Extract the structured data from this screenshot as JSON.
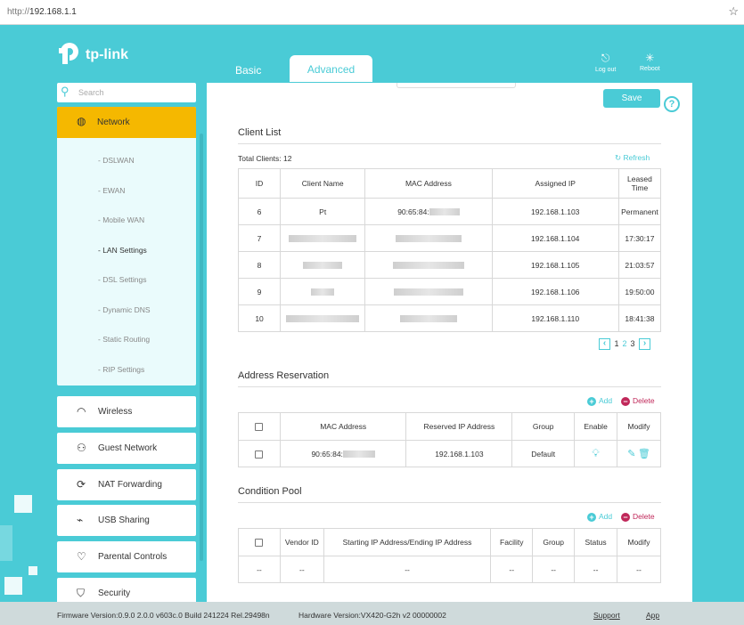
{
  "browser": {
    "url_proto": "http://",
    "url_host": "192.168.1.1"
  },
  "brand": {
    "name": "tp-link"
  },
  "topnav": {
    "tabs": [
      {
        "label": "Basic",
        "active": false
      },
      {
        "label": "Advanced",
        "active": true
      }
    ],
    "logout_label": "Log out",
    "reboot_label": "Reboot"
  },
  "sidebar": {
    "search_placeholder": "Search",
    "network": {
      "label": "Network",
      "items": [
        {
          "label": "- DSLWAN"
        },
        {
          "label": "- EWAN"
        },
        {
          "label": "- Mobile WAN"
        },
        {
          "label": "- LAN Settings",
          "active": true
        },
        {
          "label": "- DSL Settings"
        },
        {
          "label": "- Dynamic DNS"
        },
        {
          "label": "- Static Routing"
        },
        {
          "label": "- RIP Settings"
        }
      ]
    },
    "menu": [
      {
        "label": "Wireless",
        "icon": "wifi-icon"
      },
      {
        "label": "Guest Network",
        "icon": "guest-icon"
      },
      {
        "label": "NAT Forwarding",
        "icon": "nat-icon"
      },
      {
        "label": "USB Sharing",
        "icon": "usb-icon"
      },
      {
        "label": "Parental Controls",
        "icon": "heart-icon"
      },
      {
        "label": "Security",
        "icon": "shield-icon"
      }
    ]
  },
  "main": {
    "save_label": "Save",
    "help_label": "?",
    "client_list": {
      "title": "Client List",
      "total_label": "Total Clients: 12",
      "refresh_label": "Refresh",
      "headers": [
        "ID",
        "Client Name",
        "MAC Address",
        "Assigned IP",
        "Leased Time"
      ],
      "rows": [
        {
          "id": "6",
          "name": "Pt",
          "mac": "90:65:84:",
          "ip": "192.168.1.103",
          "lease": "Permanent"
        },
        {
          "id": "7",
          "name": "",
          "mac": "",
          "ip": "192.168.1.104",
          "lease": "17:30:17"
        },
        {
          "id": "8",
          "name": "",
          "mac": "",
          "ip": "192.168.1.105",
          "lease": "21:03:57"
        },
        {
          "id": "9",
          "name": "",
          "mac": "",
          "ip": "192.168.1.106",
          "lease": "19:50:00"
        },
        {
          "id": "10",
          "name": "",
          "mac": "",
          "ip": "192.168.1.110",
          "lease": "18:41:38"
        }
      ],
      "pages": [
        "1",
        "2",
        "3"
      ],
      "current_page": "1"
    },
    "address_reservation": {
      "title": "Address Reservation",
      "add_label": "Add",
      "delete_label": "Delete",
      "headers": [
        "",
        "MAC Address",
        "Reserved IP Address",
        "Group",
        "Enable",
        "Modify"
      ],
      "rows": [
        {
          "mac": "90:65:84:",
          "ip": "192.168.1.103",
          "group": "Default"
        }
      ]
    },
    "condition_pool": {
      "title": "Condition Pool",
      "add_label": "Add",
      "delete_label": "Delete",
      "headers": [
        "",
        "Vendor ID",
        "Starting IP Address/Ending IP Address",
        "Facility",
        "Group",
        "Status",
        "Modify"
      ],
      "rows": [
        [
          "--",
          "--",
          "--",
          "--",
          "--",
          "--",
          "--"
        ]
      ]
    }
  },
  "footer": {
    "firmware": "Firmware Version:0.9.0 2.0.0 v603c.0 Build 241224 Rel.29498n",
    "hardware": "Hardware Version:VX420-G2h v2 00000002",
    "support": "Support",
    "app": "App"
  },
  "colors": {
    "accent": "#4acbd6",
    "active_menu": "#f5b800",
    "delete": "#c0285a"
  }
}
